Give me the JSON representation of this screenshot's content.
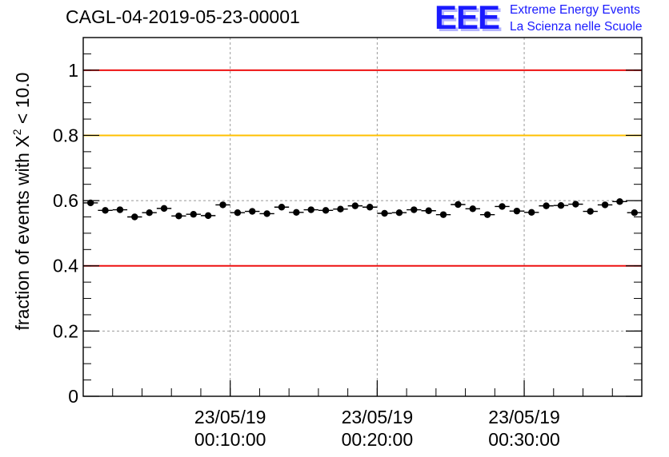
{
  "title": "CAGL-04-2019-05-23-00001",
  "logo": {
    "mark": "EEE",
    "line1": "Extreme Energy Events",
    "line2": "La Scienza nelle Scuole"
  },
  "chart_data": {
    "type": "scatter",
    "ylabel_prefix": "fraction of events with ",
    "ylabel_symbol": "X",
    "ylabel_sup": "2",
    "ylabel_suffix": " < 10.0",
    "xlabel": "",
    "ylim": [
      0,
      1.1
    ],
    "xlim_min": [
      0,
      38
    ],
    "y_ticks": [
      "0",
      "0.2",
      "0.4",
      "0.6",
      "0.8",
      "1"
    ],
    "y_tick_values": [
      0,
      0.2,
      0.4,
      0.6,
      0.8,
      1.0
    ],
    "x_ticks": [
      {
        "value_min": 10,
        "date": "23/05/19",
        "time": "00:10:00"
      },
      {
        "value_min": 20,
        "date": "23/05/19",
        "time": "00:20:00"
      },
      {
        "value_min": 30,
        "date": "23/05/19",
        "time": "00:30:00"
      }
    ],
    "grid": true,
    "reference_lines": [
      {
        "y": 1.0,
        "color": "#ee1111"
      },
      {
        "y": 0.8,
        "color": "#ffc000"
      },
      {
        "y": 0.4,
        "color": "#ee1111"
      }
    ],
    "series": [
      {
        "x_min": [
          0.5,
          1.5,
          2.5,
          3.5,
          4.5,
          5.5,
          6.5,
          7.5,
          8.5,
          9.5,
          10.5,
          11.5,
          12.5,
          13.5,
          14.5,
          15.5,
          16.5,
          17.5,
          18.5,
          19.5,
          20.5,
          21.5,
          22.5,
          23.5,
          24.5,
          25.5,
          26.5,
          27.5,
          28.5,
          29.5,
          30.5,
          31.5,
          32.5,
          33.5,
          34.5,
          35.5,
          36.5,
          37.5
        ],
        "y": [
          0.593,
          0.57,
          0.572,
          0.55,
          0.563,
          0.576,
          0.553,
          0.558,
          0.554,
          0.587,
          0.563,
          0.567,
          0.56,
          0.58,
          0.564,
          0.572,
          0.57,
          0.574,
          0.584,
          0.58,
          0.561,
          0.563,
          0.572,
          0.569,
          0.557,
          0.588,
          0.575,
          0.557,
          0.582,
          0.568,
          0.564,
          0.584,
          0.585,
          0.589,
          0.567,
          0.587,
          0.597,
          0.563
        ],
        "y_err": 0.009,
        "marker_color": "#000000"
      }
    ]
  }
}
